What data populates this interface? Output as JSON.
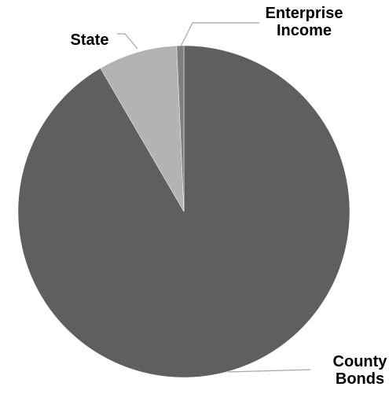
{
  "chart_data": {
    "type": "pie",
    "title": "",
    "start_angle_deg": 0,
    "direction": "clockwise",
    "slices": [
      {
        "label": [
          "County",
          "Bonds"
        ],
        "value": 91.6,
        "color": "#5f5f5f"
      },
      {
        "label": [
          "State"
        ],
        "value": 7.7,
        "color": "#b3b3b3"
      },
      {
        "label": [
          "Enterprise",
          "Income"
        ],
        "value": 0.7,
        "color": "#7f7f7f"
      }
    ],
    "legend": "none",
    "label_style": "outside-with-leader-lines"
  }
}
